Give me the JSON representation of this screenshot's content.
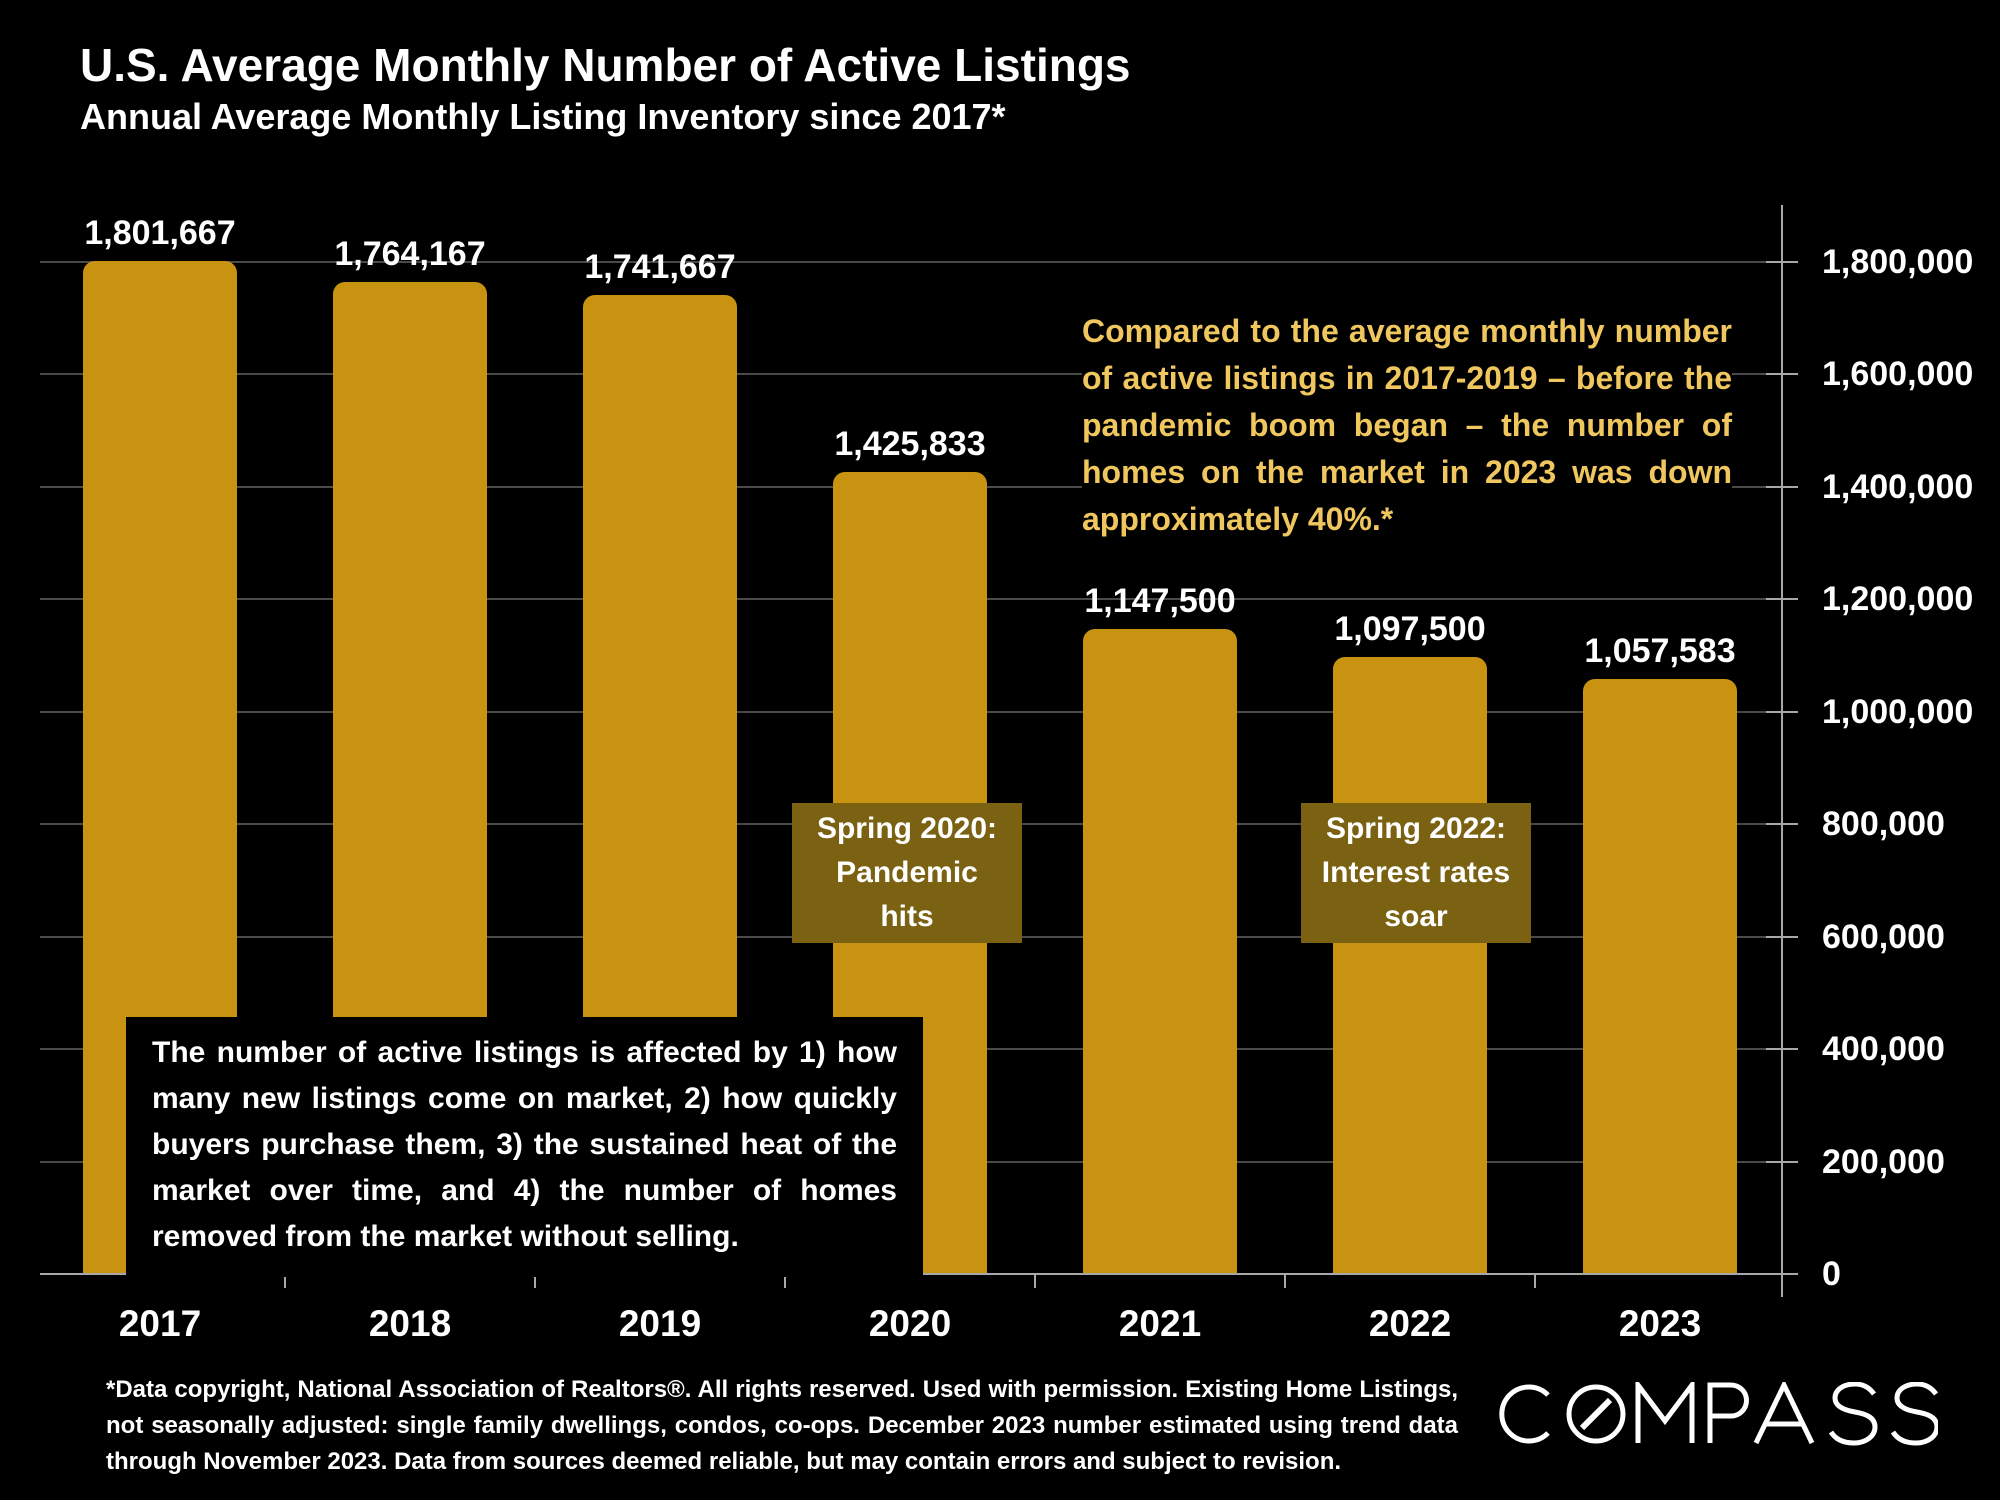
{
  "header": {
    "title": "U.S. Average Monthly Number of Active Listings",
    "subtitle": "Annual Average Monthly Listing Inventory since 2017*"
  },
  "chart_data": {
    "type": "bar",
    "title": "U.S. Average Monthly Number of Active Listings",
    "xlabel": "",
    "ylabel": "",
    "categories": [
      "2017",
      "2018",
      "2019",
      "2020",
      "2021",
      "2022",
      "2023"
    ],
    "values": [
      1801667,
      1764167,
      1741667,
      1425833,
      1147500,
      1097500,
      1057583
    ],
    "value_labels": [
      "1,801,667",
      "1,764,167",
      "1,741,667",
      "1,425,833",
      "1,147,500",
      "1,097,500",
      "1,057,583"
    ],
    "ylim": [
      0,
      1800000
    ],
    "y_axis_side": "right",
    "grid": true,
    "legend": false,
    "y_ticks": [
      {
        "value": 0,
        "label": "0"
      },
      {
        "value": 200000,
        "label": "200,000"
      },
      {
        "value": 400000,
        "label": "400,000"
      },
      {
        "value": 600000,
        "label": "600,000"
      },
      {
        "value": 800000,
        "label": "800,000"
      },
      {
        "value": 1000000,
        "label": "1,000,000"
      },
      {
        "value": 1200000,
        "label": "1,200,000"
      },
      {
        "value": 1400000,
        "label": "1,400,000"
      },
      {
        "value": 1600000,
        "label": "1,600,000"
      },
      {
        "value": 1800000,
        "label": "1,800,000"
      }
    ],
    "bar_color": "#C79310"
  },
  "annotations": {
    "comparison_note": "Compared to the average monthly number of active listings in 2017-2019 – before the pandemic boom began – the number of homes on the market in 2023 was down approximately 40%.*",
    "spring_2020": {
      "lines": [
        "Spring 2020:",
        "Pandemic",
        "hits"
      ]
    },
    "spring_2022": {
      "lines": [
        "Spring 2022:",
        "Interest rates",
        "soar"
      ]
    },
    "info_box": "The number of active listings is affected by 1) how many new listings come on market, 2) how quickly buyers purchase them, 3) the sustained heat of the market over time, and 4) the number of homes removed from the market without selling."
  },
  "footer": {
    "disclaimer": "*Data copyright, National Association of Realtors®. All rights reserved. Used with permission. Existing Home Listings, not seasonally adjusted: single family dwellings, condos, co-ops. December 2023 number estimated using trend data through November 2023. Data from sources deemed reliable, but may contain errors and subject to revision.",
    "logo_text": "COMPASS"
  },
  "colors": {
    "background": "#000000",
    "bar": "#C79310",
    "annotation_box": "#7A6212",
    "gold_text": "#F0C75E",
    "grid": "#4A4A4A",
    "axis": "#A8A8A8",
    "text": "#FFFFFF"
  }
}
